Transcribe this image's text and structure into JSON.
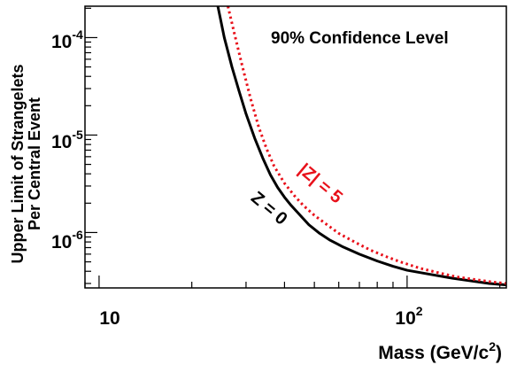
{
  "chart_data": {
    "type": "line",
    "annotation": "90% Confidence Level",
    "xlabel": "Mass (GeV/c",
    "xlabel_superscript": "2",
    "xlabel_suffix": ")",
    "ylabel_line1": "Upper Limit of Strangelets",
    "ylabel_line2": "Per Central Event",
    "xscale": "log",
    "yscale": "log",
    "xlim": [
      9,
      210
    ],
    "ylim": [
      2.7e-07,
      0.00021
    ],
    "x_ticks": [
      {
        "base": "10",
        "exp": ""
      },
      {
        "base": "10",
        "exp": "2"
      }
    ],
    "y_ticks": [
      {
        "base": "10",
        "exp": "-4"
      },
      {
        "base": "10",
        "exp": "-5"
      },
      {
        "base": "10",
        "exp": "-6"
      }
    ],
    "series": [
      {
        "name": "Z = 0",
        "color": "#000000",
        "style": "solid",
        "x": [
          24.3,
          25.5,
          27.0,
          28.5,
          30.0,
          32.0,
          34.0,
          36.0,
          38.0,
          40.0,
          42.0,
          45.0,
          48.0,
          52.0,
          56.0,
          62.0,
          70.0,
          80.0,
          90.0,
          100.0,
          120.0,
          140.0,
          160.0,
          185.0,
          210.0
        ],
        "y": [
          0.00021,
          0.0001,
          5e-05,
          2.8e-05,
          1.65e-05,
          9.3e-06,
          5.8e-06,
          3.9e-06,
          2.9e-06,
          2.3e-06,
          1.9e-06,
          1.5e-06,
          1.2e-06,
          9.8e-07,
          8.4e-07,
          7.1e-07,
          6e-07,
          5.1e-07,
          4.5e-07,
          4.1e-07,
          3.7e-07,
          3.4e-07,
          3.2e-07,
          3e-07,
          2.9e-07
        ]
      },
      {
        "name": "|Z| = 5",
        "color": "#e8101a",
        "style": "dotted",
        "x": [
          26.2,
          27.5,
          29.0,
          31.0,
          33.0,
          35.0,
          37.0,
          40.0,
          43.0,
          46.0,
          50.0,
          55.0,
          60.0,
          68.0,
          76.0,
          85.0,
          95.0,
          110.0,
          125.0,
          145.0,
          165.0,
          190.0,
          210.0
        ],
        "y": [
          0.00021,
          0.00011,
          5.5e-05,
          2.4e-05,
          1.2e-05,
          7.2e-06,
          4.8e-06,
          3.2e-06,
          2.4e-06,
          1.9e-06,
          1.5e-06,
          1.2e-06,
          9.8e-07,
          7.9e-07,
          6.6e-07,
          5.7e-07,
          5e-07,
          4.3e-07,
          3.9e-07,
          3.5e-07,
          3.3e-07,
          3.1e-07,
          3e-07
        ]
      }
    ],
    "curve_labels": [
      "Z = 0",
      "|Z| = 5"
    ]
  }
}
